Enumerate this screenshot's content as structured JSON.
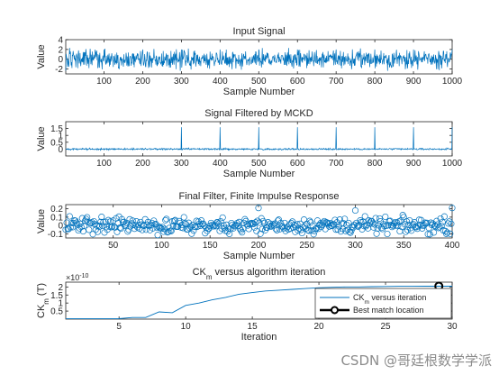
{
  "watermark": "CSDN @哥廷根数学学派",
  "colors": {
    "line": "#0072bd",
    "axis": "#262626",
    "marker": "#000000"
  },
  "chart_data": [
    {
      "id": "input-signal",
      "type": "line",
      "title": "Input Signal",
      "xlabel": "Sample Number",
      "ylabel": "Value",
      "xlim": [
        1,
        1000
      ],
      "ylim": [
        -3,
        4
      ],
      "xticks": [
        "100",
        "200",
        "300",
        "400",
        "500",
        "600",
        "700",
        "800",
        "900",
        "1000"
      ],
      "yticks": [
        "-2",
        "0",
        "2",
        "4"
      ],
      "series": [
        {
          "n": 1000,
          "style": "noise",
          "amplitude": 0.9,
          "clip": [
            -2.9,
            3.9
          ],
          "impulses": {
            "start": 100,
            "period": 100,
            "height": 2.0
          }
        }
      ]
    },
    {
      "id": "filtered-signal",
      "type": "line",
      "title": "Signal Filtered by MCKD",
      "xlabel": "Sample Number",
      "ylabel": "Value",
      "xlim": [
        1,
        1000
      ],
      "ylim": [
        -0.5,
        2
      ],
      "xticks": [
        "100",
        "200",
        "300",
        "400",
        "500",
        "600",
        "700",
        "800",
        "900",
        "1000"
      ],
      "yticks": [
        "0",
        "0.5",
        "1",
        "1.5"
      ],
      "series": [
        {
          "n": 1000,
          "style": "noise",
          "amplitude": 0.03,
          "clip": [
            -0.2,
            1.9
          ],
          "impulses": {
            "start": 300,
            "period": 100,
            "height": 1.6
          }
        }
      ]
    },
    {
      "id": "final-filter",
      "type": "scatter",
      "title": "Final Filter, Finite Impulse Response",
      "xlabel": "Sample Number",
      "ylabel": "Value",
      "xlim": [
        1,
        400
      ],
      "ylim": [
        -0.15,
        0.25
      ],
      "xticks": [
        "50",
        "100",
        "150",
        "200",
        "250",
        "300",
        "350",
        "400"
      ],
      "yticks": [
        "-0.1",
        "0",
        "0.1",
        "0.2"
      ],
      "series": [
        {
          "n": 400,
          "style": "noise",
          "amplitude": 0.045,
          "clip": [
            -0.13,
            0.13
          ],
          "spikes": [
            [
              200,
              0.21
            ],
            [
              300,
              0.18
            ],
            [
              400,
              0.21
            ]
          ]
        }
      ]
    },
    {
      "id": "ck-iteration",
      "type": "line",
      "title": "CK",
      "title_sub": "m",
      "title_rest": " versus algorithm iteration",
      "xlabel": "Iteration",
      "ylabel": "CK",
      "ylabel_sub": "m",
      "ylabel_rest": " (T)",
      "exponent_prefix": "×10",
      "exponent_power": "-10",
      "xlim": [
        1,
        30
      ],
      "ylim": [
        0,
        2.3
      ],
      "xticks": [
        "5",
        "10",
        "15",
        "20",
        "25",
        "30"
      ],
      "yticks": [
        "0.5",
        "1",
        "1.5",
        "2"
      ],
      "series": [
        {
          "name": "CK",
          "name_sub": "m",
          "name_rest": " versus iteration",
          "x": [
            1,
            2,
            3,
            4,
            5,
            6,
            7,
            8,
            9,
            10,
            11,
            12,
            13,
            14,
            15,
            16,
            17,
            18,
            19,
            20,
            21,
            22,
            23,
            24,
            25,
            26,
            27,
            28,
            29,
            30
          ],
          "y": [
            0.02,
            0.02,
            0.02,
            0.02,
            0.03,
            0.1,
            0.1,
            0.45,
            0.4,
            0.85,
            1.0,
            1.2,
            1.35,
            1.55,
            1.65,
            1.75,
            1.8,
            1.85,
            1.9,
            1.95,
            1.98,
            2.0,
            2.0,
            2.02,
            2.03,
            2.04,
            2.04,
            2.05,
            2.05,
            2.05
          ]
        },
        {
          "name": "Best match location",
          "x": [
            29
          ],
          "y": [
            2.05
          ],
          "marker": "circle"
        }
      ],
      "legend": "bottom-right"
    }
  ]
}
